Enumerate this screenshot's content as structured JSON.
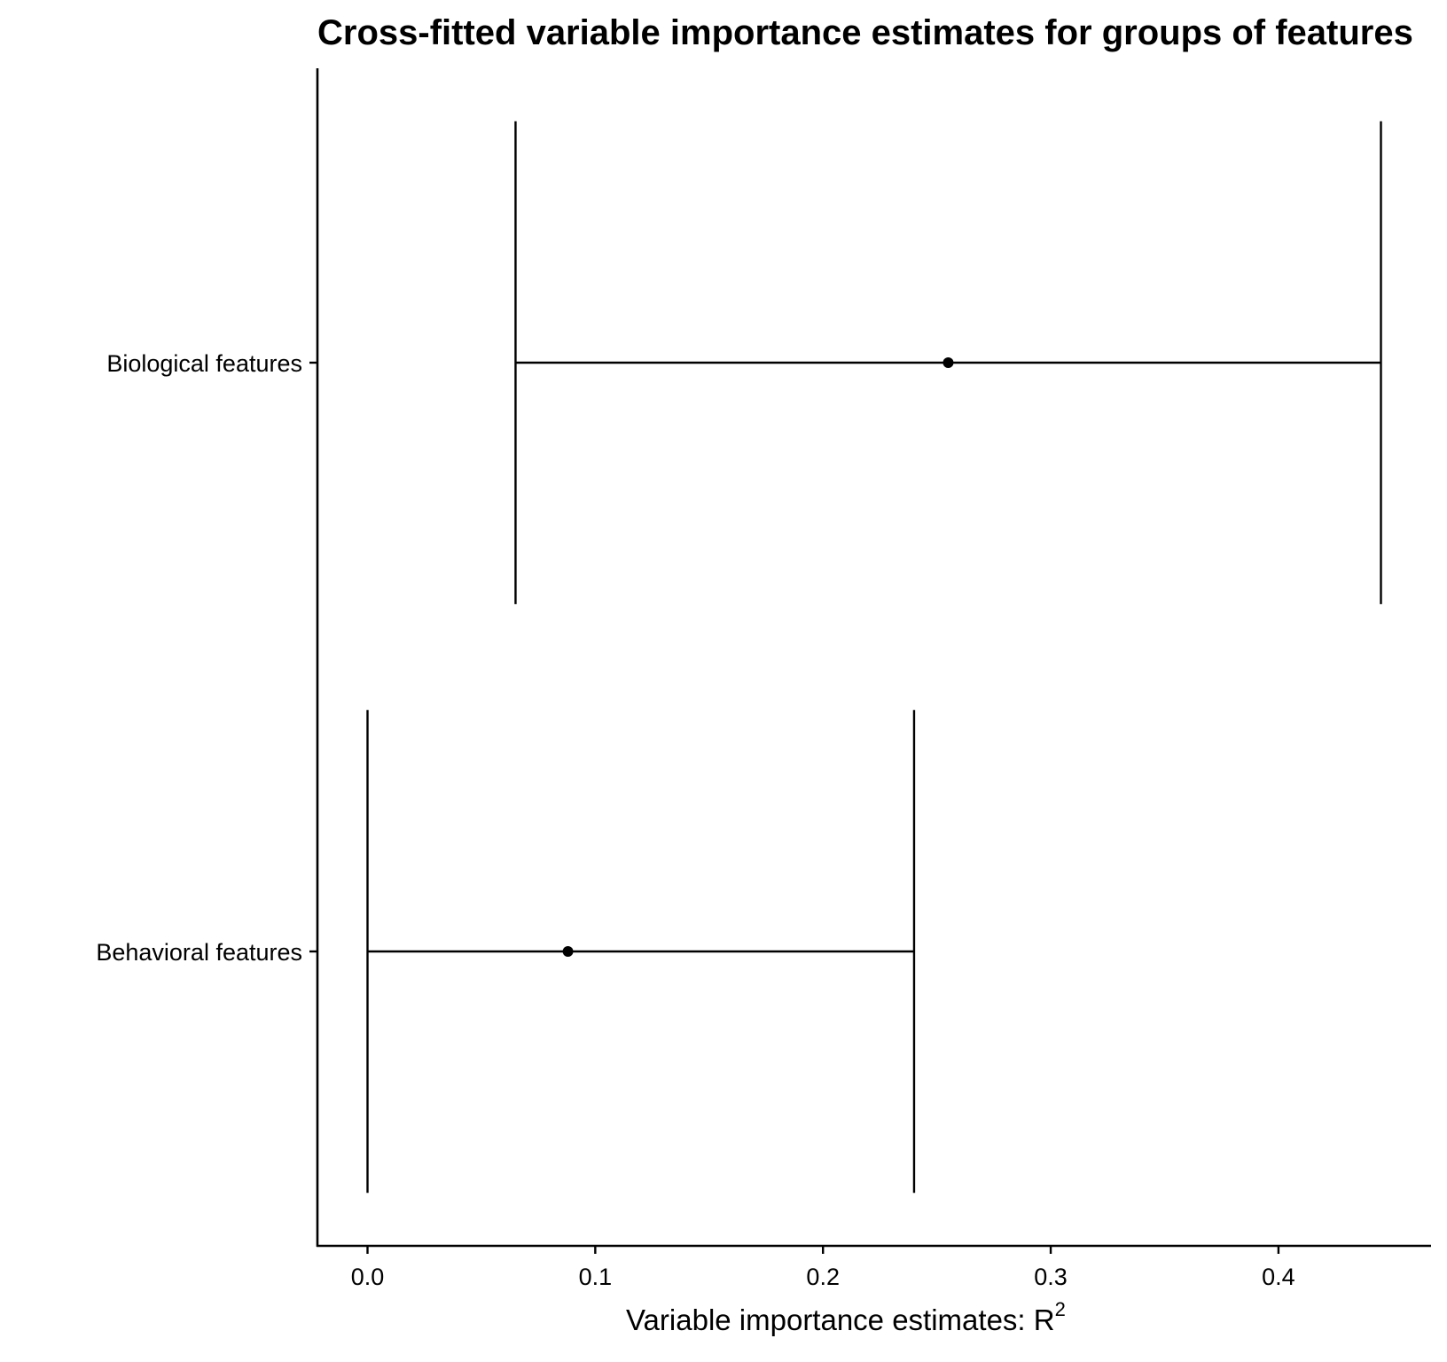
{
  "chart_data": {
    "type": "errorbar",
    "title": "Cross-fitted variable importance estimates for groups of features",
    "xlabel": "Variable importance estimates: R",
    "xlabel_superscript": "2",
    "ylabel": "",
    "xlim": [
      -0.022,
      0.467
    ],
    "x_ticks": [
      0.0,
      0.1,
      0.2,
      0.3,
      0.4
    ],
    "x_tick_labels": [
      "0.0",
      "0.1",
      "0.2",
      "0.3",
      "0.4"
    ],
    "categories": [
      "Biological features",
      "Behavioral features"
    ],
    "series": [
      {
        "points": [
          {
            "category": "Biological features",
            "estimate": 0.255,
            "lower": 0.065,
            "upper": 0.445
          },
          {
            "category": "Behavioral features",
            "estimate": 0.088,
            "lower": 0.0,
            "upper": 0.24
          }
        ]
      }
    ],
    "grid": false,
    "legend": "none",
    "colors": {
      "ink": "#000000",
      "background": "#ffffff"
    }
  }
}
